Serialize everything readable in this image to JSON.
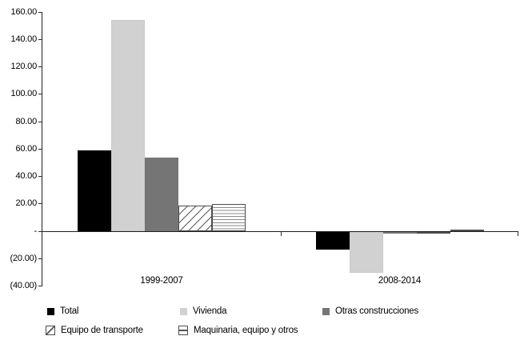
{
  "chart_data": {
    "type": "bar",
    "title": "",
    "categories": [
      "1999-2007",
      "2008-2014"
    ],
    "series": [
      {
        "name": "Total",
        "style": "solid-black",
        "color": "#000000",
        "values": [
          58.8,
          -12.6
        ]
      },
      {
        "name": "Vivienda",
        "style": "solid-lightgray",
        "color": "#d1d1d1",
        "values": [
          153.9,
          -29.7
        ]
      },
      {
        "name": "Otras construcciones",
        "style": "solid-darkgray",
        "color": "#757575",
        "values": [
          53.7,
          -1.3
        ]
      },
      {
        "name": "Equipo de transporte",
        "style": "hatch-diagonal",
        "color": "#ffffff",
        "values": [
          18.6,
          -0.9
        ]
      },
      {
        "name": "Maquinaria, equipo y otros",
        "style": "hatch-horizontal",
        "color": "#ffffff",
        "values": [
          19.8,
          1.4
        ]
      }
    ],
    "y_axis": {
      "min": -40,
      "max": 160,
      "tick_step": 20,
      "tick_labels": [
        "160.00",
        "140.00",
        "120.00",
        "100.00",
        "80.00",
        "60.00",
        "40.00",
        "20.00",
        "-",
        "(20.00)",
        "(40.00)"
      ]
    },
    "x_axis": {
      "labels": [
        "1999-2007",
        "2008-2014"
      ]
    },
    "grid": false,
    "legend_position": "bottom"
  }
}
